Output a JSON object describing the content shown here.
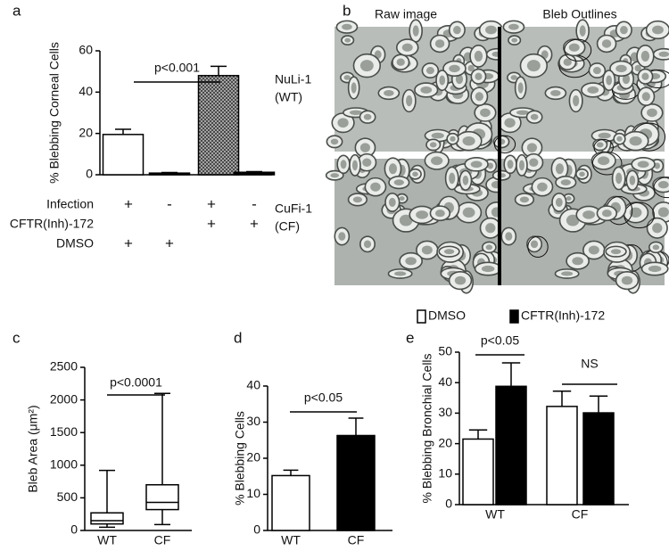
{
  "chart_data": [
    {
      "type": "bar",
      "panel_label": "a",
      "ylabel": "% Blebbing Corneal Cells",
      "categories": [
        null,
        null,
        null,
        null
      ],
      "values": [
        19.5,
        0.8,
        48,
        1.2
      ],
      "errors": [
        2.5,
        0.3,
        4.5,
        0.3
      ],
      "colors": [
        "#ffffff",
        "#000000",
        "#9a9a9a",
        "#000000"
      ],
      "patterns": [
        null,
        null,
        "crosshatch",
        null
      ],
      "ylim": [
        0,
        60
      ],
      "yticks": [
        0,
        20,
        40,
        60
      ],
      "annotations": [
        {
          "text": "p<0.001"
        }
      ],
      "conditions": [
        {
          "name": "Infection",
          "marks": [
            "+",
            "-",
            "+",
            "-"
          ]
        },
        {
          "name": "CFTR(Inh)-172",
          "marks": [
            null,
            null,
            "+",
            "+"
          ]
        },
        {
          "name": "DMSO",
          "marks": [
            "+",
            "+",
            null,
            null
          ]
        }
      ]
    },
    {
      "type": "box",
      "panel_label": "c",
      "ylabel": "Bleb Area (μm²)",
      "categories": [
        "WT",
        "CF"
      ],
      "boxes": [
        {
          "min": 50,
          "q1": 100,
          "median": 150,
          "q3": 270,
          "max": 920
        },
        {
          "min": 90,
          "q1": 320,
          "median": 430,
          "q3": 700,
          "max": 2100
        }
      ],
      "ylim": [
        0,
        2500
      ],
      "yticks": [
        0,
        500,
        1000,
        1500,
        2000,
        2500
      ],
      "annotations": [
        {
          "text": "p<0.0001"
        }
      ]
    },
    {
      "type": "bar",
      "panel_label": "d",
      "ylabel": "% Blebbing Cells",
      "categories": [
        "WT",
        "CF"
      ],
      "values": [
        15.2,
        26.3
      ],
      "errors": [
        1.5,
        4.8
      ],
      "colors": [
        "#ffffff",
        "#000000"
      ],
      "patterns": [
        null,
        null
      ],
      "ylim": [
        0,
        40
      ],
      "yticks": [
        0,
        10,
        20,
        30,
        40
      ],
      "annotations": [
        {
          "text": "p<0.05"
        }
      ]
    },
    {
      "type": "grouped_bar",
      "panel_label": "e",
      "ylabel": "% Blebbing Bronchial Cells",
      "categories": [
        "WT",
        "CF"
      ],
      "series": [
        {
          "name": "DMSO",
          "color": "#ffffff",
          "values": [
            21.5,
            32.2
          ],
          "errors": [
            3,
            5
          ]
        },
        {
          "name": "CFTR(Inh)-172",
          "color": "#000000",
          "values": [
            38.8,
            30.1
          ],
          "errors": [
            7.7,
            5.5
          ]
        }
      ],
      "ylim": [
        0,
        50
      ],
      "yticks": [
        0,
        10,
        20,
        30,
        40,
        50
      ],
      "annotations": [
        {
          "text": "p<0.05"
        },
        {
          "text": "NS"
        }
      ]
    }
  ],
  "image_panel": {
    "panel_label": "b",
    "columns": [
      "Raw image",
      "Bleb Outlines"
    ],
    "rows": [
      [
        "NuLi-1",
        "(WT)"
      ],
      [
        "CuFi-1",
        "(CF)"
      ]
    ]
  }
}
